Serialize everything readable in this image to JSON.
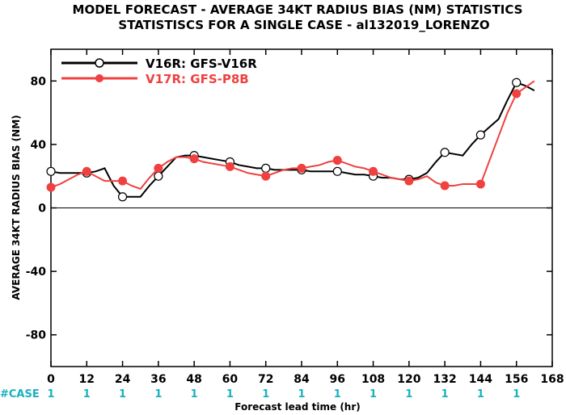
{
  "chart_data": {
    "type": "line",
    "title": "MODEL FORECAST - AVERAGE 34KT RADIUS BIAS (NM) STATISTICS",
    "subtitle": "STATISTISCS FOR A SINGLE CASE - al132019_LORENZO",
    "xlabel": "Forecast lead time (hr)",
    "ylabel": "AVERAGE 34KT RADIUS BIAS (NM)",
    "xlim": [
      0,
      168
    ],
    "ylim": [
      -100,
      100
    ],
    "xticks": [
      0,
      12,
      24,
      36,
      48,
      60,
      72,
      84,
      96,
      108,
      120,
      132,
      144,
      156,
      168
    ],
    "yticks": [
      -80,
      -40,
      0,
      40,
      80
    ],
    "grid": false,
    "legend_position": "top-left",
    "zero_line": true,
    "series": [
      {
        "name": "V16R: GFS-V16R",
        "color": "#000000",
        "marker": "open-circle",
        "x": [
          0,
          3,
          6,
          9,
          12,
          15,
          18,
          21,
          24,
          27,
          30,
          33,
          36,
          39,
          42,
          45,
          48,
          51,
          54,
          57,
          60,
          63,
          66,
          69,
          72,
          75,
          78,
          81,
          84,
          87,
          90,
          93,
          96,
          99,
          102,
          105,
          108,
          111,
          114,
          117,
          120,
          123,
          126,
          129,
          132,
          135,
          138,
          141,
          144,
          147,
          150,
          153,
          156,
          159,
          162
        ],
        "y": [
          23,
          22,
          22,
          22,
          22,
          23,
          25,
          14,
          7,
          7,
          7,
          14,
          20,
          26,
          32,
          33,
          33,
          32,
          31,
          30,
          29,
          27,
          26,
          25,
          25,
          24,
          24,
          24,
          24,
          23,
          23,
          23,
          23,
          22,
          21,
          21,
          20,
          19,
          19,
          18,
          18,
          19,
          22,
          29,
          35,
          34,
          33,
          40,
          46,
          51,
          56,
          68,
          79,
          77,
          74
        ],
        "marker_x": [
          0,
          12,
          24,
          36,
          48,
          60,
          72,
          84,
          96,
          108,
          120,
          132,
          144,
          156
        ]
      },
      {
        "name": "V17R: GFS-P8B",
        "color": "#f04040",
        "marker": "filled-circle",
        "x": [
          0,
          3,
          6,
          9,
          12,
          15,
          18,
          21,
          24,
          27,
          30,
          33,
          36,
          39,
          42,
          45,
          48,
          51,
          54,
          57,
          60,
          63,
          66,
          69,
          72,
          75,
          78,
          81,
          84,
          87,
          90,
          93,
          96,
          99,
          102,
          105,
          108,
          111,
          114,
          117,
          120,
          123,
          126,
          129,
          132,
          135,
          138,
          141,
          144,
          147,
          150,
          153,
          156,
          159,
          162
        ],
        "y": [
          13,
          15,
          18,
          21,
          23,
          20,
          17,
          17,
          17,
          14,
          12,
          19,
          25,
          29,
          32,
          32,
          31,
          29,
          28,
          27,
          26,
          24,
          22,
          21,
          20,
          22,
          24,
          25,
          25,
          26,
          27,
          29,
          30,
          28,
          26,
          25,
          23,
          21,
          19,
          18,
          17,
          18,
          20,
          16,
          14,
          14,
          15,
          15,
          15,
          30,
          45,
          60,
          72,
          76,
          80
        ],
        "marker_x": [
          0,
          12,
          24,
          36,
          48,
          60,
          72,
          84,
          96,
          108,
          120,
          132,
          144,
          156
        ]
      }
    ],
    "case_counts": {
      "label": "#CASE",
      "color": "#1ab0c0",
      "x": [
        0,
        12,
        24,
        36,
        48,
        60,
        72,
        84,
        96,
        108,
        120,
        132,
        144,
        156
      ],
      "values": [
        "1",
        "1",
        "1",
        "1",
        "1",
        "1",
        "1",
        "1",
        "1",
        "1",
        "1",
        "1",
        "1",
        "1"
      ]
    }
  }
}
